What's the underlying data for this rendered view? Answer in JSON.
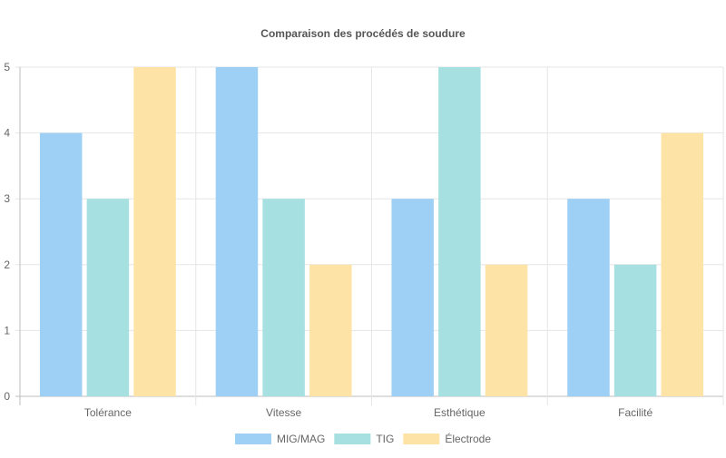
{
  "chart_data": {
    "type": "bar",
    "title": "Comparaison des procédés de soudure",
    "xlabel": "",
    "ylabel": "",
    "categories": [
      "Tolérance",
      "Vitesse",
      "Esthétique",
      "Facilité"
    ],
    "ylim": [
      0,
      5
    ],
    "yticks": [
      0,
      1,
      2,
      3,
      4,
      5
    ],
    "grid": true,
    "legend_position": "bottom",
    "series": [
      {
        "name": "MIG/MAG",
        "values": [
          4,
          5,
          3,
          3
        ],
        "color": "#9ed0f5"
      },
      {
        "name": "TIG",
        "values": [
          3,
          3,
          5,
          2
        ],
        "color": "#a6e0e0"
      },
      {
        "name": "Électrode",
        "values": [
          5,
          2,
          2,
          4
        ],
        "color": "#fde3a6"
      }
    ]
  }
}
